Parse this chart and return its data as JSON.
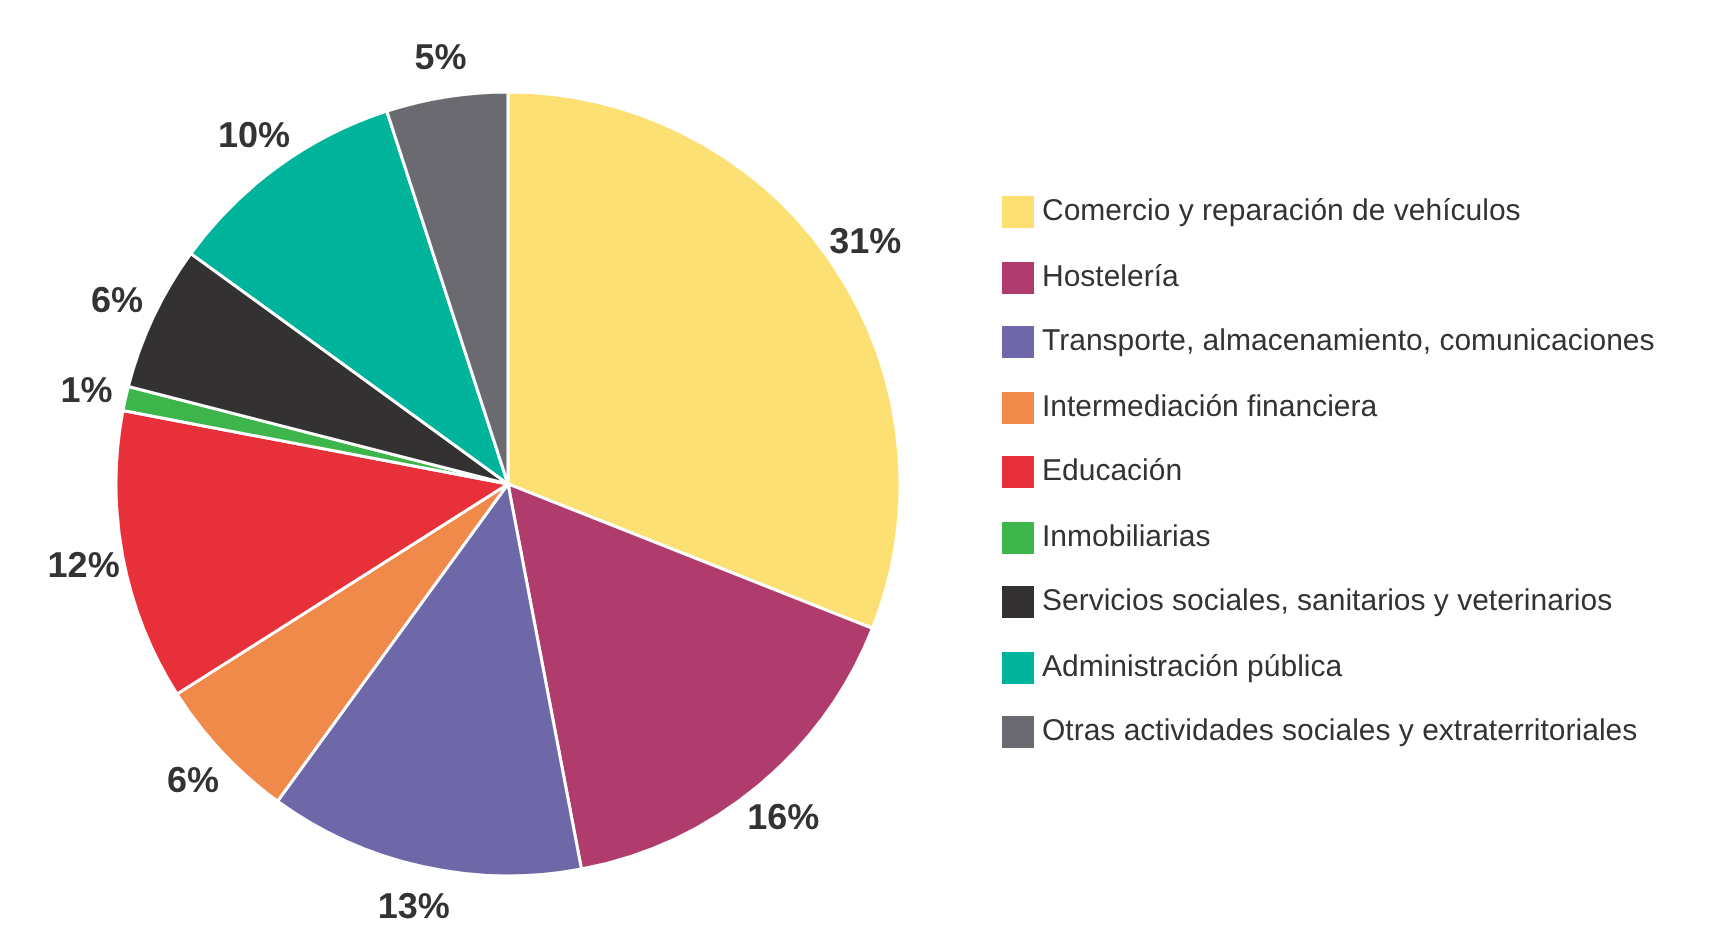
{
  "chart_data": {
    "type": "pie",
    "categories": [
      "Comercio y reparación de vehículos",
      "Hostelería",
      "Transporte, almacenamiento, comunicaciones",
      "Intermediación financiera",
      "Educación",
      "Inmobiliarias",
      "Servicios sociales, sanitarios y veterinarios",
      "Administración pública",
      "Otras actividades sociales y extraterritoriales"
    ],
    "values": [
      31,
      16,
      13,
      6,
      12,
      1,
      6,
      10,
      5
    ],
    "colors": [
      "#fde074",
      "#b03c6e",
      "#6e68a8",
      "#f08a4b",
      "#e8303a",
      "#3db54a",
      "#333132",
      "#00b39b",
      "#6b6a70"
    ],
    "value_labels": [
      "31%",
      "16%",
      "13%",
      "6%",
      "12%",
      "1%",
      "6%",
      "10%",
      "5%"
    ],
    "legend": "right"
  }
}
